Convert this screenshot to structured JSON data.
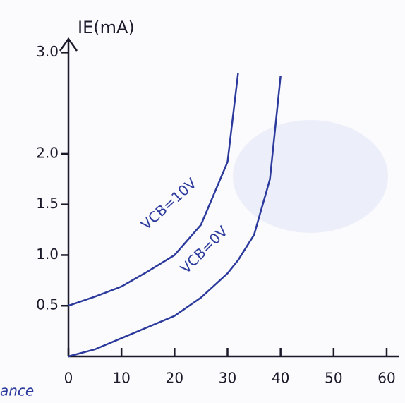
{
  "chart_data": {
    "type": "line",
    "y_label": "IE(mA)",
    "x": [
      0,
      5,
      10,
      15,
      20,
      25,
      30,
      32,
      35,
      38,
      40
    ],
    "series": [
      {
        "name": "VCB=10V",
        "color": "#2b3a9c",
        "values": [
          0.5,
          0.59,
          0.69,
          0.84,
          1.0,
          1.3,
          1.92,
          2.8,
          null,
          null,
          null
        ]
      },
      {
        "name": "VCB=0V",
        "color": "#2b3a9c",
        "values": [
          0,
          0.07,
          0.18,
          0.29,
          0.4,
          0.58,
          0.82,
          0.95,
          1.2,
          1.75,
          2.77
        ]
      }
    ],
    "xlim": [
      0,
      60
    ],
    "xticks": [
      0,
      10,
      20,
      30,
      40,
      50,
      60
    ],
    "ylim": [
      0,
      3.1
    ],
    "yticks": [
      {
        "value": 0.5,
        "label": "0.5"
      },
      {
        "value": 1,
        "label": "1.0"
      },
      1.5,
      {
        "value": 2,
        "label": "2.0"
      },
      {
        "value": 3,
        "label": "3.0"
      }
    ],
    "annotation": "ance"
  }
}
